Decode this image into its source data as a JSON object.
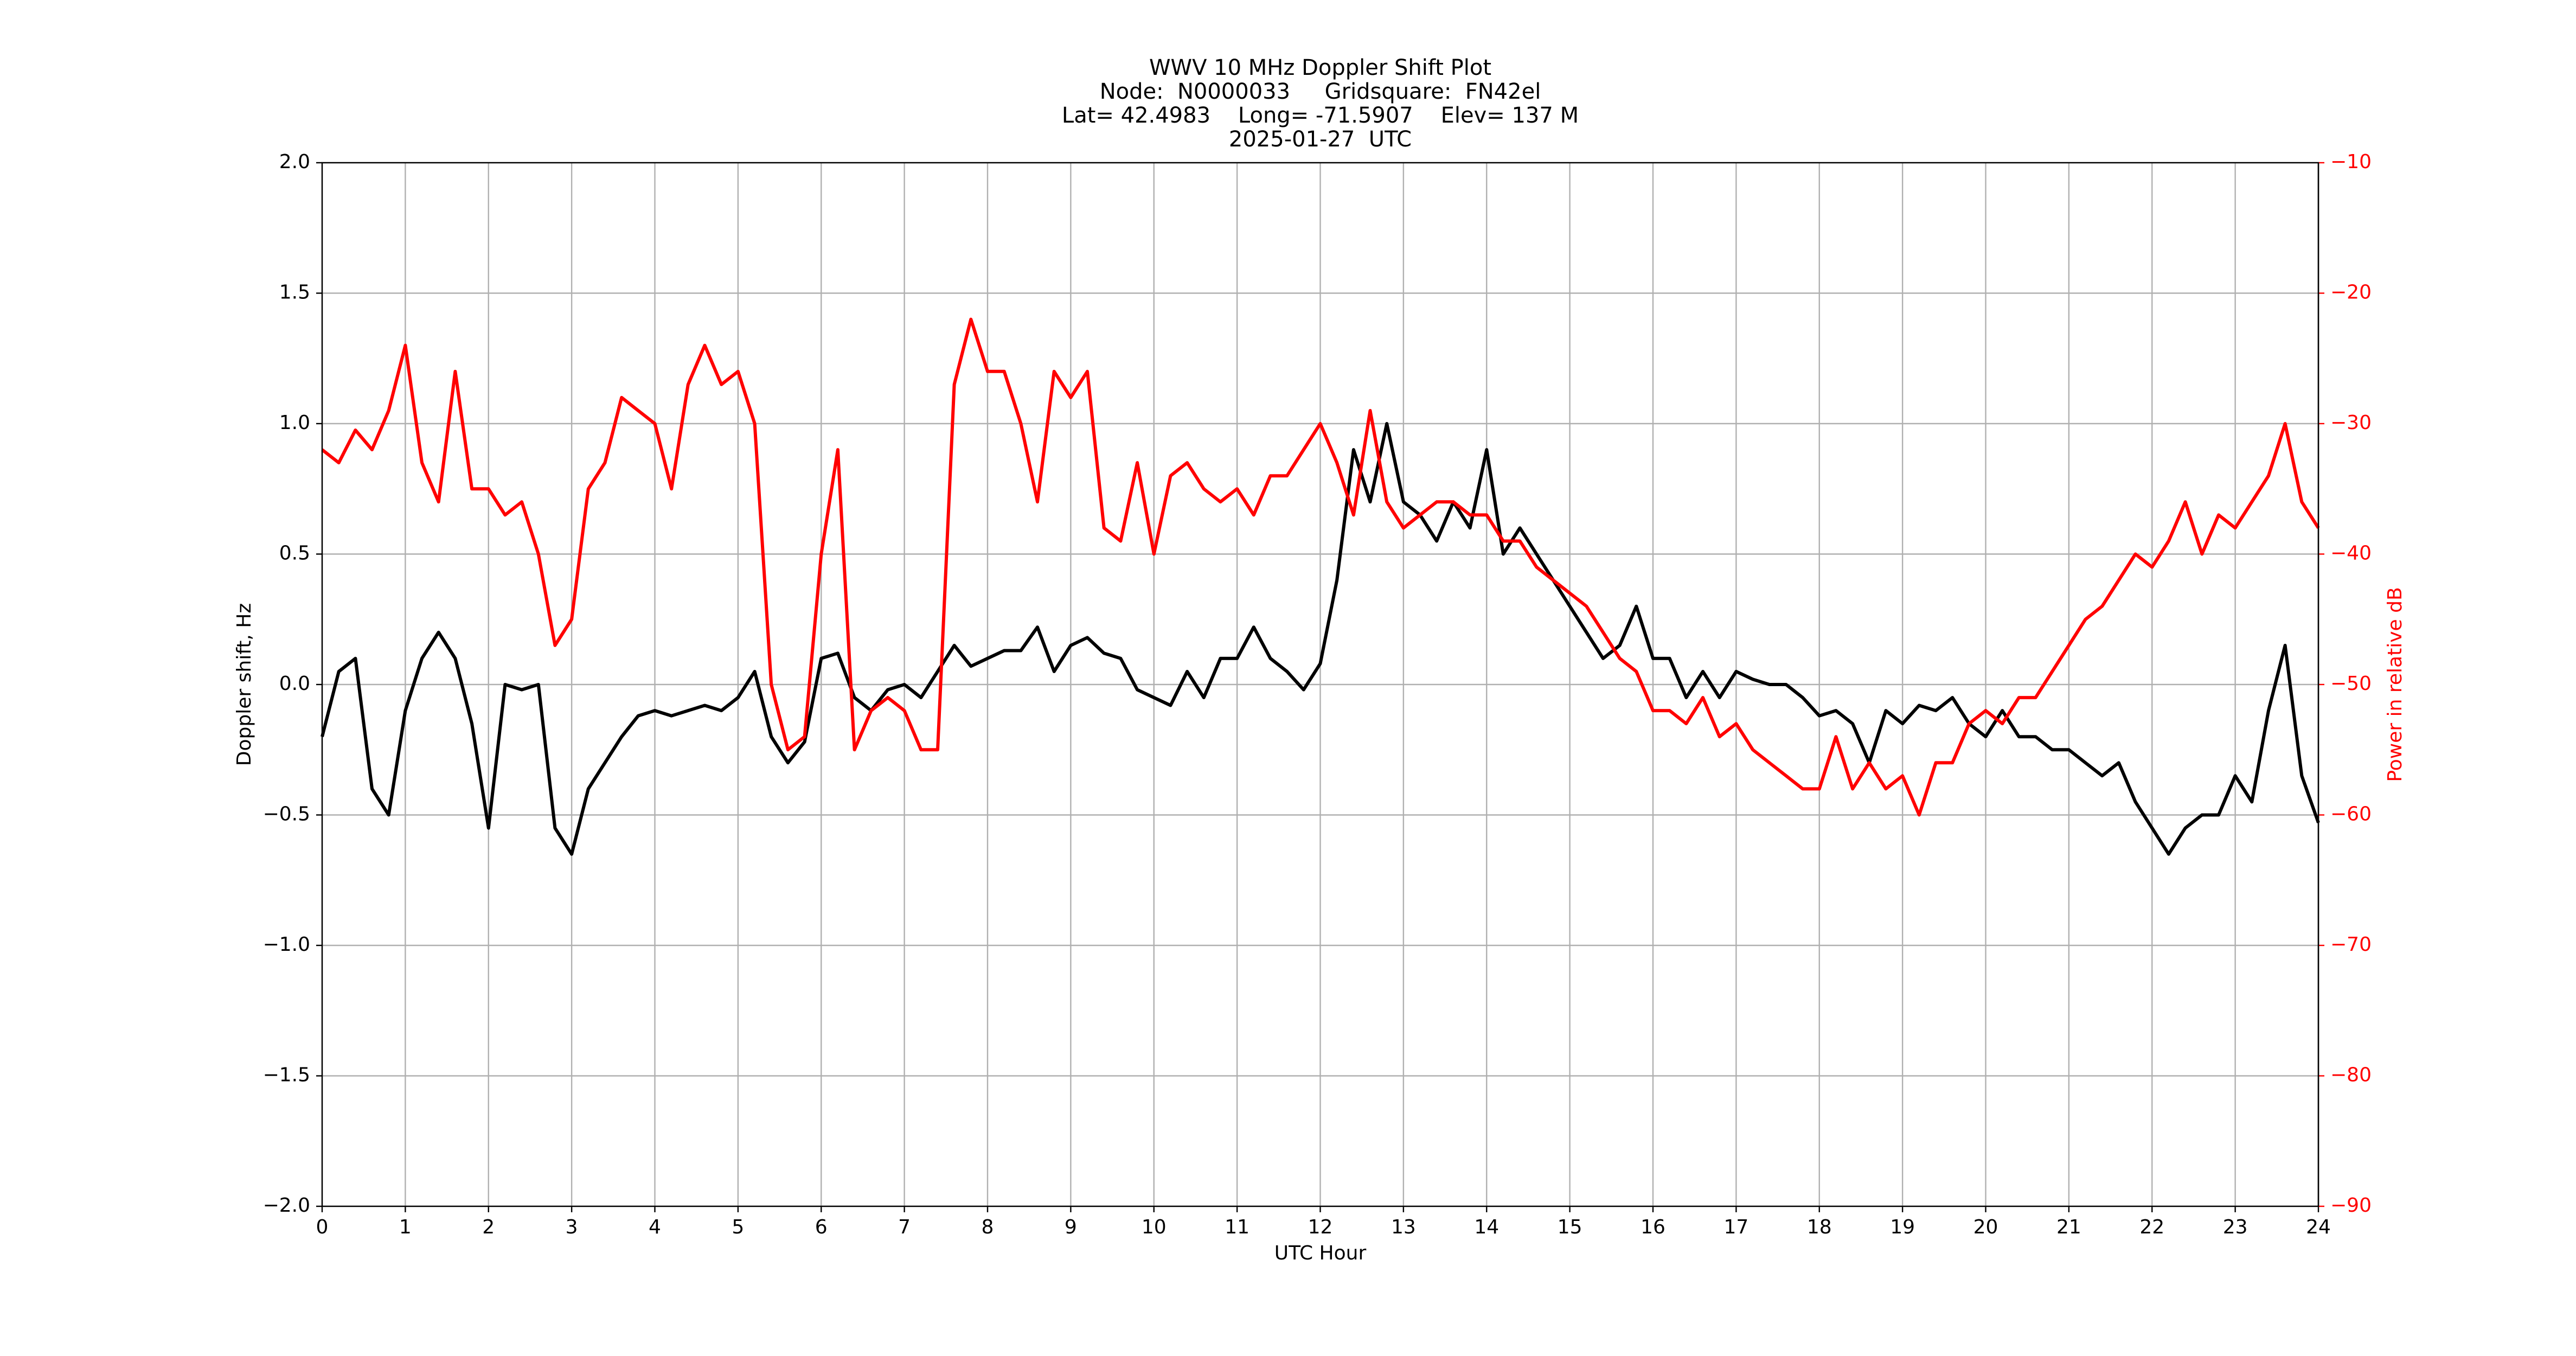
{
  "chart_data": {
    "type": "line",
    "title": [
      "WWV 10 MHz Doppler Shift Plot",
      "Node:  N0000033     Gridsquare:  FN42el",
      "Lat= 42.4983    Long= -71.5907    Elev= 137 M",
      "2025-01-27  UTC"
    ],
    "xlabel": "UTC Hour",
    "ylabel": "Doppler shift, Hz",
    "y2label": "Power in relative dB",
    "y2color": "#ff0000",
    "grid": true,
    "x": [
      0.0,
      0.2,
      0.4,
      0.6,
      0.8,
      1.0,
      1.2,
      1.4,
      1.6,
      1.8,
      2.0,
      2.2,
      2.4,
      2.6,
      2.8,
      3.0,
      3.2,
      3.4,
      3.6,
      3.8,
      4.0,
      4.2,
      4.4,
      4.6,
      4.8,
      5.0,
      5.2,
      5.4,
      5.6,
      5.8,
      6.0,
      6.2,
      6.4,
      6.6,
      6.8,
      7.0,
      7.2,
      7.4,
      7.6,
      7.8,
      8.0,
      8.2,
      8.4,
      8.6,
      8.8,
      9.0,
      9.2,
      9.4,
      9.6,
      9.8,
      10.0,
      10.2,
      10.4,
      10.6,
      10.8,
      11.0,
      11.2,
      11.4,
      11.6,
      11.8,
      12.0,
      12.2,
      12.4,
      12.6,
      12.8,
      13.0,
      13.2,
      13.4,
      13.6,
      13.8,
      14.0,
      14.2,
      14.4,
      14.6,
      14.8,
      15.0,
      15.2,
      15.4,
      15.6,
      15.8,
      16.0,
      16.2,
      16.4,
      16.6,
      16.8,
      17.0,
      17.2,
      17.4,
      17.6,
      17.8,
      18.0,
      18.2,
      18.4,
      18.6,
      18.8,
      19.0,
      19.2,
      19.4,
      19.6,
      19.8,
      20.0,
      20.2,
      20.4,
      20.6,
      20.8,
      21.0,
      21.2,
      21.4,
      21.6,
      21.8,
      22.0,
      22.2,
      22.4,
      22.6,
      22.8,
      23.0,
      23.2,
      23.4,
      23.6,
      23.8,
      24.0
    ],
    "series": [
      {
        "color": "#000000",
        "values": [
          -0.2,
          0.05,
          0.1,
          -0.4,
          -0.5,
          -0.1,
          0.1,
          0.2,
          0.1,
          -0.15,
          -0.55,
          0.0,
          -0.02,
          0.0,
          -0.55,
          -0.65,
          -0.4,
          -0.3,
          -0.2,
          -0.12,
          -0.1,
          -0.12,
          -0.1,
          -0.08,
          -0.1,
          -0.05,
          0.05,
          -0.2,
          -0.3,
          -0.22,
          0.1,
          0.12,
          -0.05,
          -0.1,
          -0.02,
          0.0,
          -0.05,
          0.05,
          0.15,
          0.07,
          0.1,
          0.13,
          0.13,
          0.22,
          0.05,
          0.15,
          0.18,
          0.12,
          0.1,
          -0.02,
          -0.05,
          -0.08,
          0.05,
          -0.05,
          0.1,
          0.1,
          0.22,
          0.1,
          0.05,
          -0.02,
          0.08,
          0.4,
          0.9,
          0.7,
          1.0,
          0.7,
          0.65,
          0.55,
          0.7,
          0.6,
          0.9,
          0.5,
          0.6,
          0.5,
          0.4,
          0.3,
          0.2,
          0.1,
          0.15,
          0.3,
          0.1,
          0.1,
          -0.05,
          0.05,
          -0.05,
          0.05,
          0.02,
          0.0,
          0.0,
          -0.05,
          -0.12,
          -0.1,
          -0.15,
          -0.3,
          -0.1,
          -0.15,
          -0.08,
          -0.1,
          -0.05,
          -0.15,
          -0.2,
          -0.1,
          -0.2,
          -0.2,
          -0.25,
          -0.25,
          -0.3,
          -0.35,
          -0.3,
          -0.45,
          -0.55,
          -0.65,
          -0.55,
          -0.5,
          -0.5,
          -0.35,
          -0.45,
          -0.1,
          0.15,
          -0.35,
          -0.53
        ]
      },
      {
        "color": "#ff0000",
        "axis": "y2",
        "values": [
          -32,
          -33,
          -30.5,
          -32,
          -29,
          -24,
          -33,
          -36,
          -26,
          -35,
          -35,
          -37,
          -36,
          -40,
          -47,
          -45,
          -35,
          -33,
          -28,
          -29,
          -30,
          -35,
          -27,
          -24,
          -27,
          -26,
          -30,
          -50,
          -55,
          -54,
          -40,
          -32,
          -55,
          -52,
          -51,
          -52,
          -55,
          -55,
          -27,
          -22,
          -26,
          -26,
          -30,
          -36,
          -26,
          -28,
          -26,
          -38,
          -39,
          -33,
          -40,
          -34,
          -33,
          -35,
          -36,
          -35,
          -37,
          -34,
          -34,
          -32,
          -30,
          -33,
          -37,
          -29,
          -36,
          -38,
          -37,
          -36,
          -36,
          -37,
          -37,
          -39,
          -39,
          -41,
          -42,
          -43,
          -44,
          -46,
          -48,
          -49,
          -52,
          -52,
          -53,
          -51,
          -54,
          -53,
          -55,
          -56,
          -57,
          -58,
          -58,
          -54,
          -58,
          -56,
          -58,
          -57,
          -60,
          -56,
          -56,
          -53,
          -52,
          -53,
          -51,
          -51,
          -49,
          -47,
          -45,
          -44,
          -42,
          -40,
          -41,
          -39,
          -36,
          -40,
          -37,
          -38,
          -36,
          -34,
          -30,
          -36,
          -38
        ]
      }
    ],
    "xlim": [
      0,
      24
    ],
    "xticks": [
      0,
      1,
      2,
      3,
      4,
      5,
      6,
      7,
      8,
      9,
      10,
      11,
      12,
      13,
      14,
      15,
      16,
      17,
      18,
      19,
      20,
      21,
      22,
      23,
      24
    ],
    "ylim": [
      -2,
      2
    ],
    "yticks": [
      {
        "value": -2,
        "label": "−2.0"
      },
      {
        "value": -1.5,
        "label": "−1.5"
      },
      {
        "value": -1,
        "label": "−1.0"
      },
      {
        "value": -0.5,
        "label": "−0.5"
      },
      {
        "value": 0,
        "label": "0.0"
      },
      {
        "value": 0.5,
        "label": "0.5"
      },
      {
        "value": 1,
        "label": "1.0"
      },
      {
        "value": 1.5,
        "label": "1.5"
      },
      {
        "value": 2,
        "label": "2.0"
      }
    ],
    "y2lim": [
      -90,
      -10
    ],
    "y2ticks": [
      {
        "value": -90,
        "label": "−90"
      },
      {
        "value": -80,
        "label": "−80"
      },
      {
        "value": -70,
        "label": "−70"
      },
      {
        "value": -60,
        "label": "−60"
      },
      {
        "value": -50,
        "label": "−50"
      },
      {
        "value": -40,
        "label": "−40"
      },
      {
        "value": -30,
        "label": "−30"
      },
      {
        "value": -20,
        "label": "−20"
      },
      {
        "value": -10,
        "label": "−10"
      }
    ]
  }
}
